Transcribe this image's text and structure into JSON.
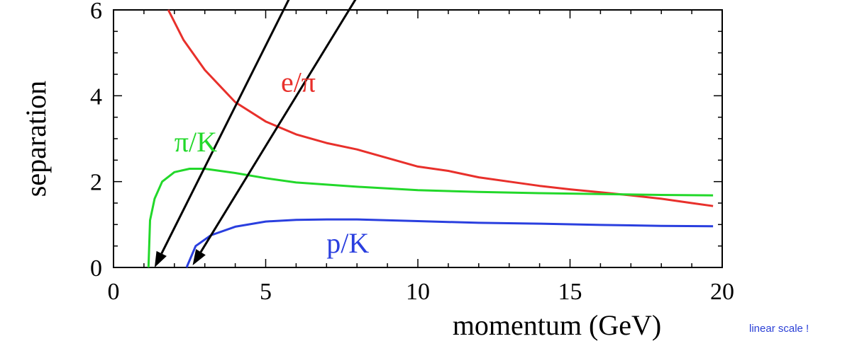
{
  "note": {
    "text": "linear scale !",
    "color": "#2a3fd6"
  },
  "chart_data": {
    "type": "line",
    "xlabel": "momentum (GeV)",
    "ylabel": "separation",
    "xlim": [
      0,
      20
    ],
    "ylim": [
      0,
      6
    ],
    "xticks": [
      "0",
      "5",
      "10",
      "15",
      "20"
    ],
    "yticks": [
      "0",
      "2",
      "4",
      "6"
    ],
    "grid": false,
    "series": [
      {
        "name": "e/π",
        "color": "#e8302b",
        "x": [
          1.8,
          2.3,
          3.0,
          4.0,
          5.0,
          6.0,
          7.0,
          8.0,
          9.0,
          10.0,
          11.0,
          12.0,
          13.0,
          14.0,
          15.0,
          16.0,
          17.0,
          18.0,
          19.0,
          19.7
        ],
        "y": [
          6.0,
          5.3,
          4.6,
          3.85,
          3.4,
          3.1,
          2.9,
          2.75,
          2.55,
          2.35,
          2.25,
          2.1,
          2.0,
          1.9,
          1.82,
          1.75,
          1.68,
          1.6,
          1.5,
          1.43
        ]
      },
      {
        "name": "π/K",
        "color": "#22d82a",
        "x": [
          1.15,
          1.2,
          1.35,
          1.6,
          2.0,
          2.5,
          3.0,
          4.0,
          5.0,
          6.0,
          8.0,
          10.0,
          12.0,
          14.0,
          16.0,
          18.0,
          19.7
        ],
        "y": [
          0.0,
          1.1,
          1.6,
          2.0,
          2.22,
          2.3,
          2.3,
          2.2,
          2.08,
          1.98,
          1.88,
          1.8,
          1.76,
          1.73,
          1.71,
          1.69,
          1.68
        ]
      },
      {
        "name": "p/K",
        "color": "#2a3fdf",
        "x": [
          2.4,
          2.7,
          3.2,
          4.0,
          5.0,
          6.0,
          7.0,
          8.0,
          10.0,
          12.0,
          14.0,
          16.0,
          18.0,
          19.7
        ],
        "y": [
          0.0,
          0.5,
          0.75,
          0.95,
          1.07,
          1.11,
          1.12,
          1.12,
          1.08,
          1.04,
          1.02,
          0.99,
          0.97,
          0.96
        ]
      }
    ],
    "annotations": [
      {
        "type": "arrow",
        "from": [
          5.8,
          6.3
        ],
        "to": [
          1.35,
          0.0
        ]
      },
      {
        "type": "arrow",
        "from": [
          8.0,
          6.3
        ],
        "to": [
          2.6,
          0.05
        ]
      }
    ]
  }
}
